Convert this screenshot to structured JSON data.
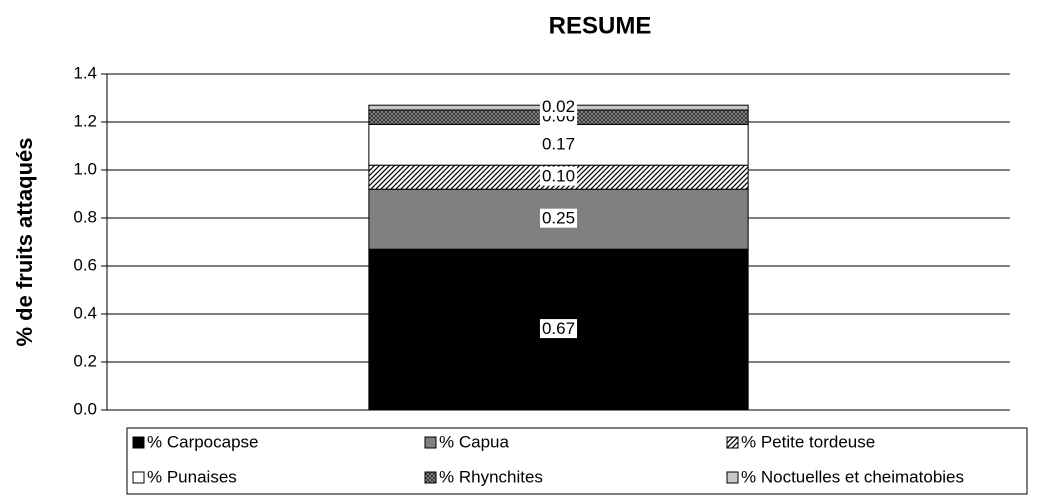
{
  "chart_data": {
    "type": "stacked-bar",
    "title": "RESUME",
    "y_label": "% de fruits attaqués",
    "categories": [
      null
    ],
    "series": [
      {
        "name": "% Carpocapse",
        "color": "#000000",
        "pattern": "solid",
        "values": [
          0.67
        ],
        "value_labels": [
          "0.67"
        ]
      },
      {
        "name": "% Capua",
        "color": "#808080",
        "pattern": "solid",
        "values": [
          0.25
        ],
        "value_labels": [
          "0.25"
        ]
      },
      {
        "name": "% Petite tordeuse",
        "color": "#000000",
        "pattern": "hatch",
        "values": [
          0.1
        ],
        "value_labels": [
          "0.10"
        ]
      },
      {
        "name": "% Punaises",
        "color": "#ffffff",
        "pattern": "solid",
        "values": [
          0.17
        ],
        "value_labels": [
          "0.17"
        ]
      },
      {
        "name": "% Rhynchites",
        "color": "#555555",
        "pattern": "cross",
        "values": [
          0.06
        ],
        "value_labels": [
          "0.06"
        ]
      },
      {
        "name": "% Noctuelles et cheimatobies",
        "color": "#c8c8c8",
        "pattern": "solid",
        "values": [
          0.02
        ],
        "value_labels": [
          "0.02"
        ]
      }
    ],
    "ylim": [
      0,
      1.4
    ],
    "yticks": [
      {
        "value": 0,
        "label": "0.0"
      },
      0.2,
      0.4,
      0.6,
      0.8,
      {
        "value": 1,
        "label": "1.0"
      },
      1.2,
      1.4
    ],
    "grid": true,
    "legend": "bottom"
  }
}
